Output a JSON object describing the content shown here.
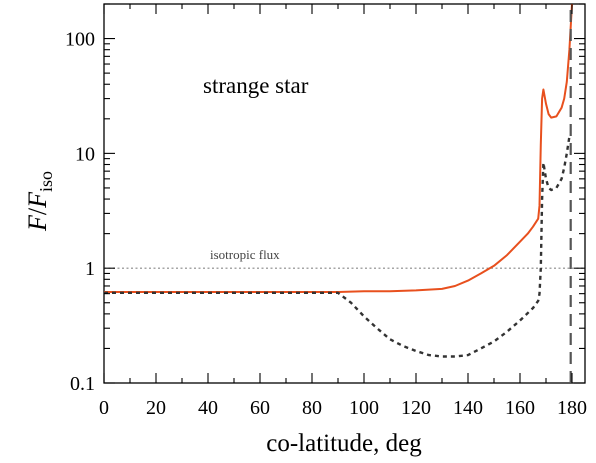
{
  "chart_data": {
    "type": "line",
    "title": "",
    "xlabel": "co-latitude, deg",
    "ylabel_main": "F",
    "ylabel_den": "F",
    "ylabel_sub": "iso",
    "annotation": "strange star",
    "ref_label": "isotropic flux",
    "xlim": [
      0,
      185
    ],
    "ylim": [
      0.1,
      200
    ],
    "yscale": "log",
    "x_ticks": [
      0,
      20,
      40,
      60,
      80,
      100,
      120,
      140,
      160,
      180
    ],
    "y_ticks": [
      0.1,
      1,
      10,
      100
    ],
    "y_tick_labels": [
      "0.1",
      "1",
      "10",
      "100"
    ],
    "grid": false,
    "series": [
      {
        "style": "solid",
        "color": "#e8501e",
        "x": [
          0,
          20,
          40,
          60,
          80,
          90,
          100,
          110,
          120,
          130,
          135,
          140,
          145,
          150,
          155,
          160,
          163,
          165,
          167,
          167.5,
          168,
          168.5,
          169,
          170,
          171,
          172,
          174,
          176,
          177,
          178,
          179,
          180
        ],
        "y": [
          0.62,
          0.62,
          0.62,
          0.62,
          0.62,
          0.62,
          0.63,
          0.63,
          0.64,
          0.66,
          0.7,
          0.78,
          0.9,
          1.05,
          1.3,
          1.7,
          2.0,
          2.3,
          2.7,
          3.5,
          12,
          30,
          36,
          27,
          22,
          20.5,
          21,
          25,
          30,
          42,
          80,
          200
        ]
      },
      {
        "style": "dotted",
        "color": "#333333",
        "x": [
          0,
          20,
          40,
          60,
          80,
          90,
          95,
          100,
          105,
          110,
          115,
          120,
          125,
          130,
          135,
          140,
          145,
          150,
          155,
          160,
          165,
          167,
          167.5,
          168,
          168.5,
          169,
          170,
          171,
          172,
          174,
          176,
          177,
          178,
          179
        ],
        "y": [
          0.61,
          0.61,
          0.61,
          0.61,
          0.61,
          0.61,
          0.5,
          0.38,
          0.3,
          0.24,
          0.21,
          0.19,
          0.175,
          0.17,
          0.17,
          0.175,
          0.2,
          0.23,
          0.28,
          0.35,
          0.45,
          0.52,
          0.6,
          1.0,
          4.0,
          8.3,
          6.0,
          5.0,
          4.8,
          5.0,
          6.0,
          7.5,
          10,
          14
        ]
      },
      {
        "style": "dashed",
        "color": "#555555",
        "x": [
          179.5,
          179.5
        ],
        "y": [
          0.1,
          200
        ]
      }
    ],
    "reference_lines": [
      {
        "y": 1,
        "style": "dotted",
        "color": "#888888"
      }
    ]
  }
}
